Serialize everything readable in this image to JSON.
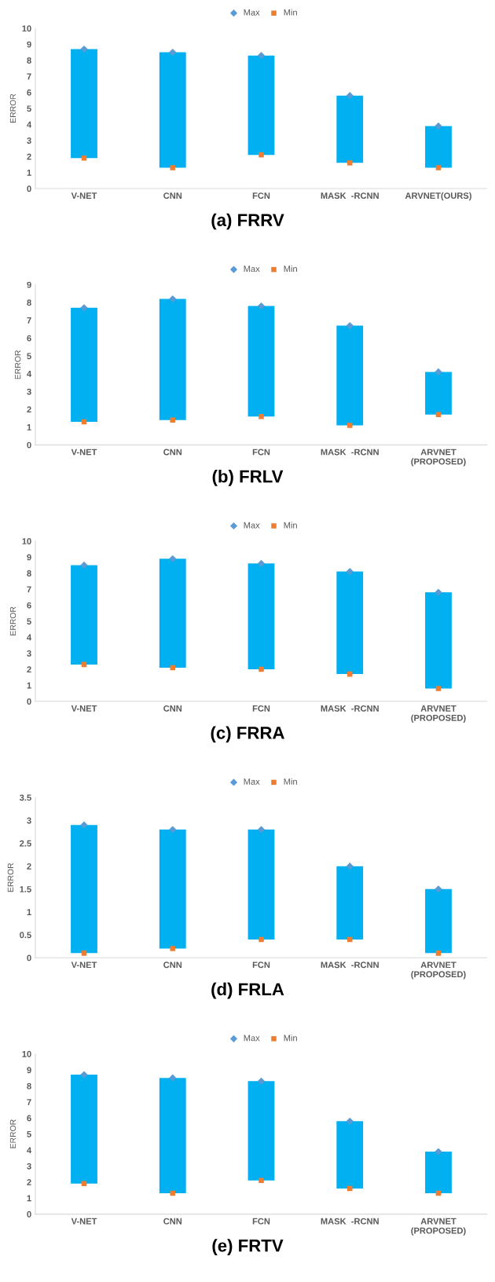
{
  "chart_data": [
    {
      "type": "bar",
      "title": "(a) FRRV",
      "ylabel": "ERROR",
      "legend": "top",
      "ylim": [
        0,
        10
      ],
      "yticks": [
        0,
        1,
        2,
        3,
        4,
        5,
        6,
        7,
        8,
        9,
        10
      ],
      "categories": [
        "V-NET",
        "CNN",
        "FCN",
        "MASK  -RCNN",
        "ARVNET(OURS)"
      ],
      "series": [
        {
          "type": "bar",
          "color": "#00b0f0",
          "base": [
            1.9,
            1.3,
            2.1,
            1.6,
            1.3
          ],
          "values": [
            6.8,
            7.2,
            6.2,
            4.2,
            2.6
          ]
        },
        {
          "type": "scatter",
          "name": "Max",
          "marker": "diamond",
          "color": "#5b9bd5",
          "values": [
            8.7,
            8.5,
            8.3,
            5.8,
            3.9
          ]
        },
        {
          "type": "scatter",
          "name": "Min",
          "marker": "square",
          "color": "#ed7d31",
          "values": [
            1.9,
            1.3,
            2.1,
            1.6,
            1.3
          ]
        }
      ]
    },
    {
      "type": "bar",
      "title": "(b) FRLV",
      "ylabel": "ERROR",
      "legend": "top",
      "ylim": [
        0,
        9
      ],
      "yticks": [
        0,
        1,
        2,
        3,
        4,
        5,
        6,
        7,
        8,
        9
      ],
      "categories": [
        "V-NET",
        "CNN",
        "FCN",
        "MASK  -RCNN",
        "ARVNET\n(PROPOSED)"
      ],
      "series": [
        {
          "type": "bar",
          "color": "#00b0f0",
          "base": [
            1.3,
            1.4,
            1.6,
            1.1,
            1.7
          ],
          "values": [
            6.4,
            6.8,
            6.2,
            5.6,
            2.4
          ]
        },
        {
          "type": "scatter",
          "name": "Max",
          "marker": "diamond",
          "color": "#5b9bd5",
          "values": [
            7.7,
            8.2,
            7.8,
            6.7,
            4.1
          ]
        },
        {
          "type": "scatter",
          "name": "Min",
          "marker": "square",
          "color": "#ed7d31",
          "values": [
            1.3,
            1.4,
            1.6,
            1.1,
            1.7
          ]
        }
      ]
    },
    {
      "type": "bar",
      "title": "(c) FRRA",
      "ylabel": "ERROR",
      "legend": "top",
      "ylim": [
        0,
        10
      ],
      "yticks": [
        0,
        1,
        2,
        3,
        4,
        5,
        6,
        7,
        8,
        9,
        10
      ],
      "categories": [
        "V-NET",
        "CNN",
        "FCN",
        "MASK  -RCNN",
        "ARVNET\n(PROPOSED)"
      ],
      "series": [
        {
          "type": "bar",
          "color": "#00b0f0",
          "base": [
            2.3,
            2.1,
            2.0,
            1.7,
            0.8
          ],
          "values": [
            6.2,
            6.8,
            6.6,
            6.4,
            6.0
          ]
        },
        {
          "type": "scatter",
          "name": "Max",
          "marker": "diamond",
          "color": "#5b9bd5",
          "values": [
            8.5,
            8.9,
            8.6,
            8.1,
            6.8
          ]
        },
        {
          "type": "scatter",
          "name": "Min",
          "marker": "square",
          "color": "#ed7d31",
          "values": [
            2.3,
            2.1,
            2.0,
            1.7,
            0.8
          ]
        }
      ]
    },
    {
      "type": "bar",
      "title": "(d) FRLA",
      "ylabel": "ERROR",
      "legend": "top",
      "ylim": [
        0,
        3.5
      ],
      "yticks": [
        0,
        0.5,
        1,
        1.5,
        2,
        2.5,
        3,
        3.5
      ],
      "categories": [
        "V-NET",
        "CNN",
        "FCN",
        "MASK  -RCNN",
        "ARVNET\n(PROPOSED)"
      ],
      "series": [
        {
          "type": "bar",
          "color": "#00b0f0",
          "base": [
            0.1,
            0.2,
            0.4,
            0.4,
            0.1
          ],
          "values": [
            2.8,
            2.6,
            2.4,
            1.6,
            1.4
          ]
        },
        {
          "type": "scatter",
          "name": "Max",
          "marker": "diamond",
          "color": "#5b9bd5",
          "values": [
            2.9,
            2.8,
            2.8,
            2.0,
            1.5
          ]
        },
        {
          "type": "scatter",
          "name": "Min",
          "marker": "square",
          "color": "#ed7d31",
          "values": [
            0.1,
            0.2,
            0.4,
            0.4,
            0.1
          ]
        }
      ]
    },
    {
      "type": "bar",
      "title": "(e) FRTV",
      "ylabel": "ERROR",
      "legend": "top",
      "ylim": [
        0,
        10
      ],
      "yticks": [
        0,
        1,
        2,
        3,
        4,
        5,
        6,
        7,
        8,
        9,
        10
      ],
      "categories": [
        "V-NET",
        "CNN",
        "FCN",
        "MASK  -RCNN",
        "ARVNET\n(PROPOSED)"
      ],
      "series": [
        {
          "type": "bar",
          "color": "#00b0f0",
          "base": [
            1.9,
            1.3,
            2.1,
            1.6,
            1.3
          ],
          "values": [
            6.8,
            7.2,
            6.2,
            4.2,
            2.6
          ]
        },
        {
          "type": "scatter",
          "name": "Max",
          "marker": "diamond",
          "color": "#5b9bd5",
          "values": [
            8.7,
            8.5,
            8.3,
            5.8,
            3.9
          ]
        },
        {
          "type": "scatter",
          "name": "Min",
          "marker": "square",
          "color": "#ed7d31",
          "values": [
            1.9,
            1.3,
            2.1,
            1.6,
            1.3
          ]
        }
      ]
    }
  ]
}
